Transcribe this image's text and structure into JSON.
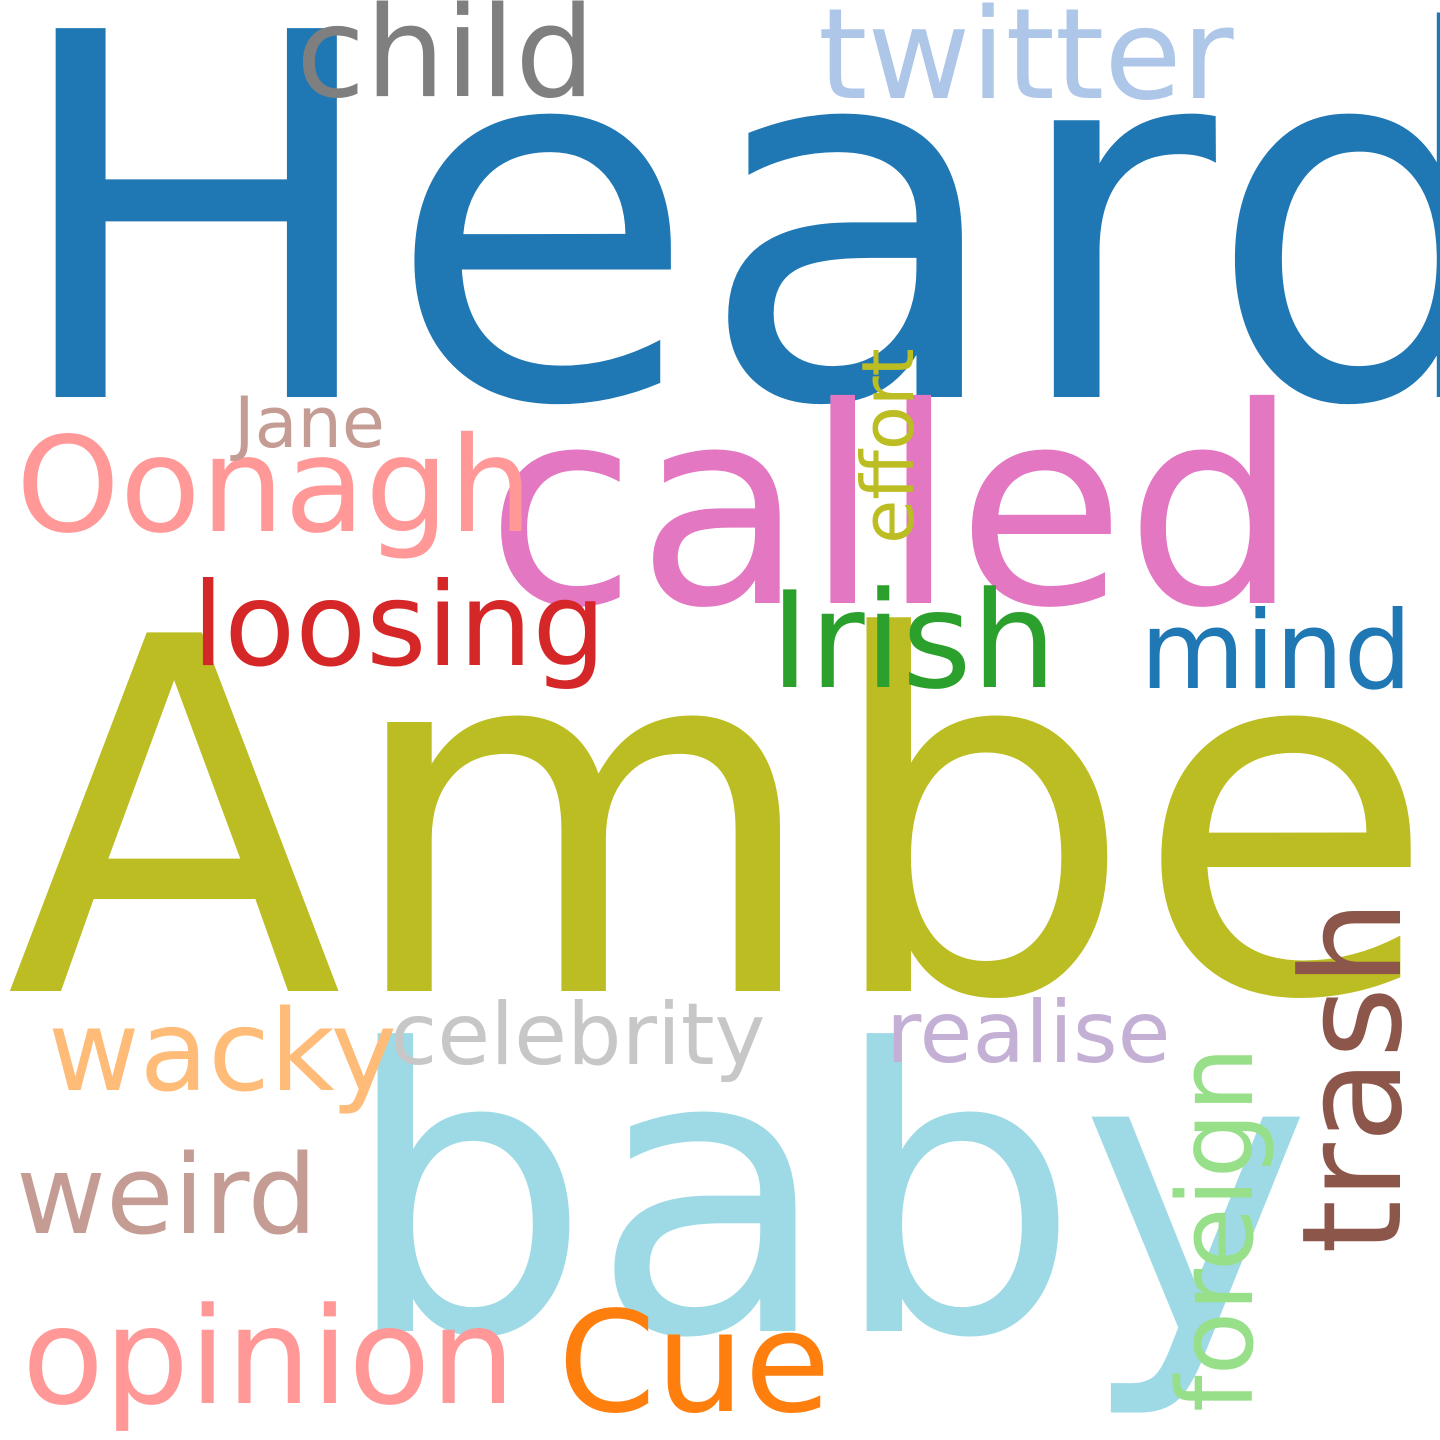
{
  "background": "#ffffff",
  "words": [
    {
      "id": "heard",
      "text": "Heard",
      "color": "#1f77b4",
      "orientation": "horizontal"
    },
    {
      "id": "amber",
      "text": "Amber",
      "color": "#bcbd22",
      "orientation": "horizontal"
    },
    {
      "id": "baby",
      "text": "baby",
      "color": "#9edae5",
      "orientation": "horizontal"
    },
    {
      "id": "called",
      "text": "called",
      "color": "#e377c2",
      "orientation": "horizontal"
    },
    {
      "id": "child",
      "text": "child",
      "color": "#7f7f7f",
      "orientation": "horizontal"
    },
    {
      "id": "twitter",
      "text": "twitter",
      "color": "#aec7e8",
      "orientation": "horizontal"
    },
    {
      "id": "oonagh",
      "text": "Oonagh",
      "color": "#ff9896",
      "orientation": "horizontal"
    },
    {
      "id": "jane",
      "text": "Jane",
      "color": "#c49c94",
      "orientation": "horizontal"
    },
    {
      "id": "effort",
      "text": "effort",
      "color": "#bcbd22",
      "orientation": "vertical"
    },
    {
      "id": "loosing",
      "text": "loosing",
      "color": "#d62728",
      "orientation": "horizontal"
    },
    {
      "id": "irish",
      "text": "Irish",
      "color": "#2ca02c",
      "orientation": "horizontal"
    },
    {
      "id": "mind",
      "text": "mind",
      "color": "#1f77b4",
      "orientation": "horizontal"
    },
    {
      "id": "trash",
      "text": "trash",
      "color": "#8c564b",
      "orientation": "vertical"
    },
    {
      "id": "wacky",
      "text": "wacky",
      "color": "#ffbb78",
      "orientation": "horizontal"
    },
    {
      "id": "celebrity",
      "text": "celebrity",
      "color": "#c7c7c7",
      "orientation": "horizontal"
    },
    {
      "id": "realise",
      "text": "realise",
      "color": "#c5b0d5",
      "orientation": "horizontal"
    },
    {
      "id": "foreign",
      "text": "foreign",
      "color": "#98df8a",
      "orientation": "vertical"
    },
    {
      "id": "weird",
      "text": "weird",
      "color": "#c49c94",
      "orientation": "horizontal"
    },
    {
      "id": "opinion",
      "text": "opinion",
      "color": "#ff9896",
      "orientation": "horizontal"
    },
    {
      "id": "cue",
      "text": "Cue",
      "color": "#ff7f0e",
      "orientation": "horizontal"
    }
  ]
}
